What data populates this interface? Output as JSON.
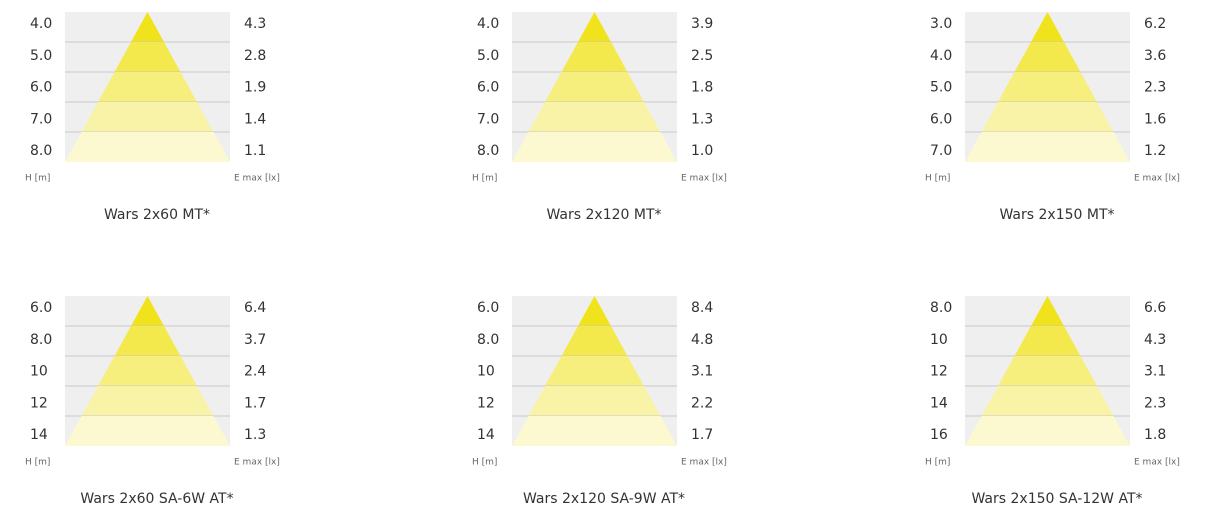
{
  "panels": [
    {
      "name": "Wars 2x60 MT*",
      "heights": [
        "4.0",
        "5.0",
        "6.0",
        "7.0",
        "8.0"
      ],
      "emax": [
        "4.3",
        "2.8",
        "1.9",
        "1.4",
        "1.1"
      ],
      "height_label": "H [m]",
      "emax_label": "E max [lx]"
    },
    {
      "name": "Wars 2x120 MT*",
      "heights": [
        "4.0",
        "5.0",
        "6.0",
        "7.0",
        "8.0"
      ],
      "emax": [
        "3.9",
        "2.5",
        "1.8",
        "1.3",
        "1.0"
      ],
      "height_label": "H [m]",
      "emax_label": "E max [lx]"
    },
    {
      "name": "Wars 2x150 MT*",
      "heights": [
        "3.0",
        "4.0",
        "5.0",
        "6.0",
        "7.0"
      ],
      "emax": [
        "6.2",
        "3.6",
        "2.3",
        "1.6",
        "1.2"
      ],
      "height_label": "H [m]",
      "emax_label": "E max [lx]"
    },
    {
      "name": "Wars 2x60 SA-6W AT*",
      "heights": [
        "6.0",
        "8.0",
        "10",
        "12",
        "14"
      ],
      "emax": [
        "6.4",
        "3.7",
        "2.4",
        "1.7",
        "1.3"
      ],
      "height_label": "H [m]",
      "emax_label": "E max [lx]"
    },
    {
      "name": "Wars 2x120 SA-9W AT*",
      "heights": [
        "6.0",
        "8.0",
        "10",
        "12",
        "14"
      ],
      "emax": [
        "8.4",
        "4.8",
        "3.1",
        "2.2",
        "1.7"
      ],
      "height_label": "H [m]",
      "emax_label": "E max [lx]"
    },
    {
      "name": "Wars 2x150 SA-12W AT*",
      "heights": [
        "8.0",
        "10",
        "12",
        "14",
        "16"
      ],
      "emax": [
        "6.6",
        "4.3",
        "3.1",
        "2.3",
        "1.8"
      ],
      "height_label": "H [m]",
      "emax_label": "E max [lx]"
    }
  ]
}
